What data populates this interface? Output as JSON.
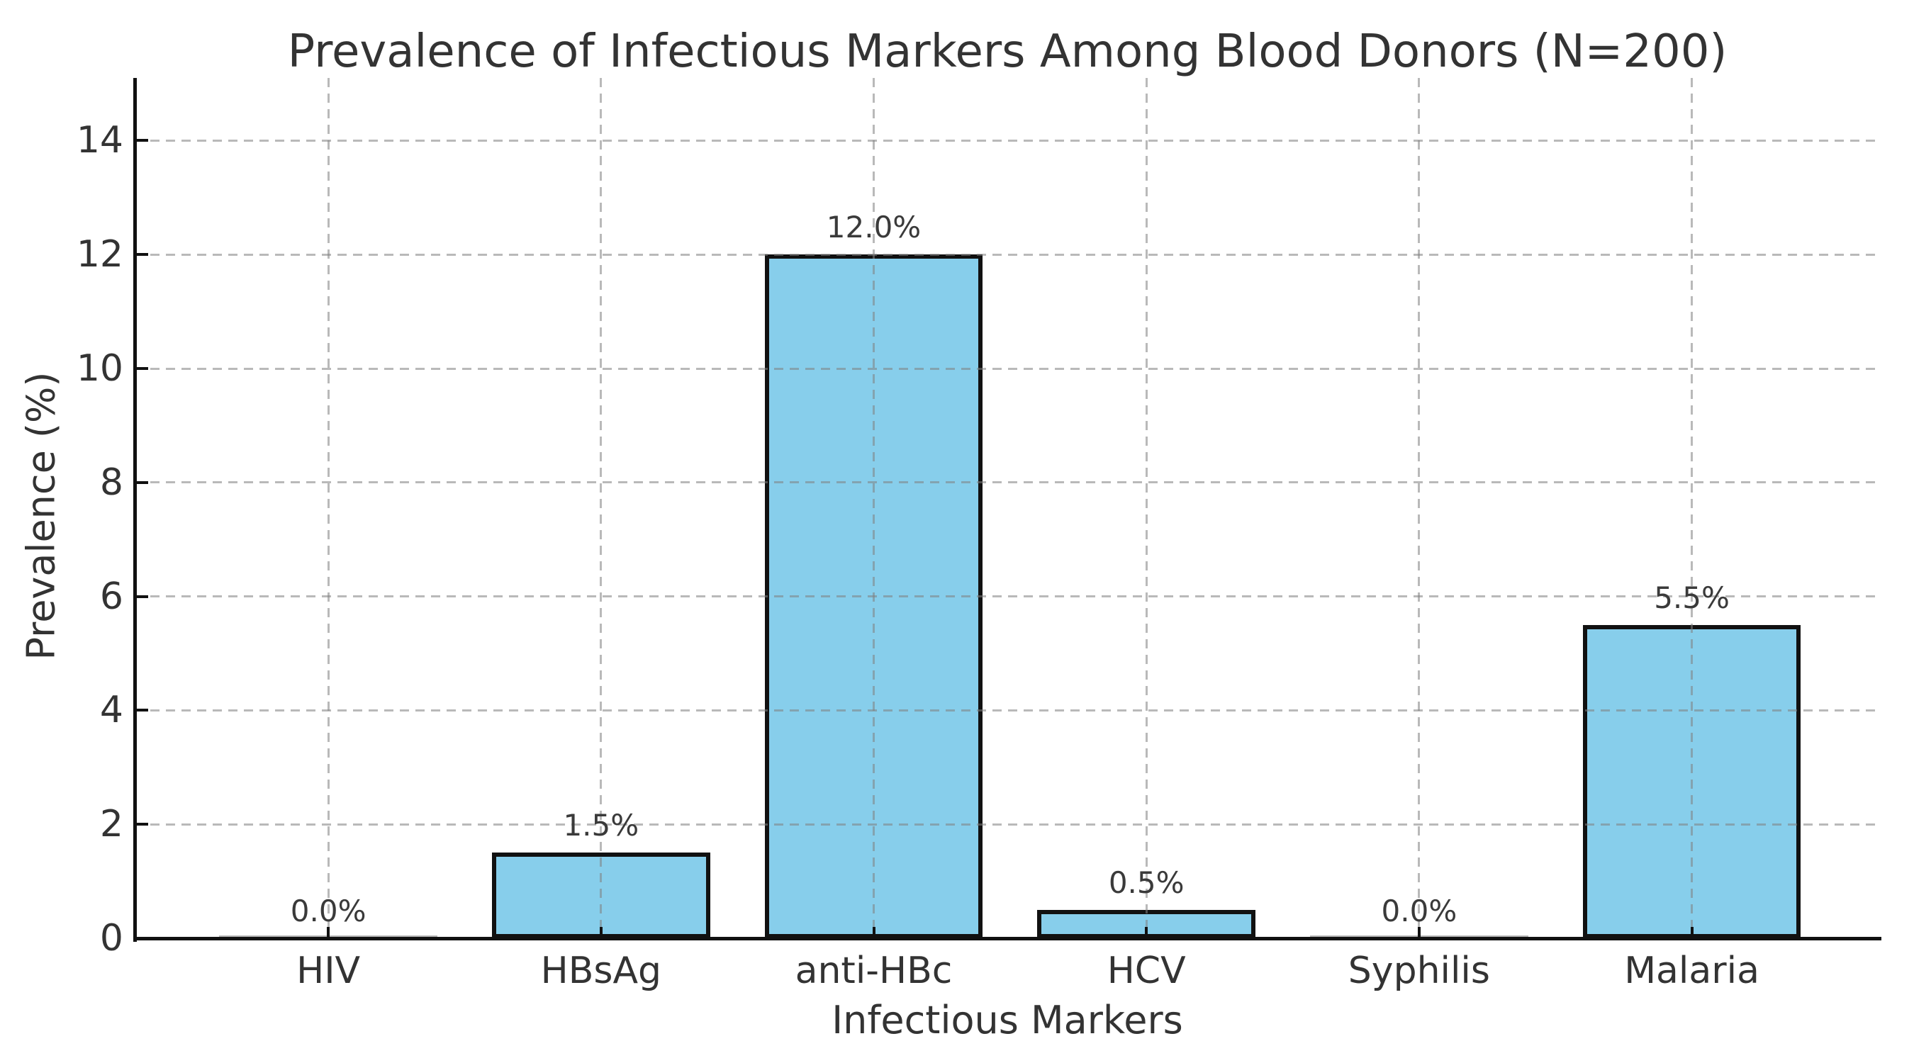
{
  "figure": {
    "background_color": "#ffffff"
  },
  "chart_data": {
    "type": "bar",
    "title": "Prevalence of Infectious Markers Among Blood Donors (N=200)",
    "xlabel": "Infectious Markers",
    "ylabel": "Prevalence (%)",
    "categories": [
      "HIV",
      "HBsAg",
      "anti-HBc",
      "HCV",
      "Syphilis",
      "Malaria"
    ],
    "values": [
      0.0,
      1.5,
      12.0,
      0.5,
      0.0,
      5.5
    ],
    "value_labels": [
      "0.0%",
      "1.5%",
      "12.0%",
      "0.5%",
      "0.0%",
      "5.5%"
    ],
    "yticks": [
      0,
      2,
      4,
      6,
      8,
      10,
      12,
      14
    ],
    "ylim": [
      0,
      15.1
    ],
    "xlim": [
      -0.71,
      5.69
    ],
    "bar_width": 0.8,
    "grid": {
      "style": "dashed",
      "axes": "both",
      "drawn_above_bars": true
    },
    "legend": "none",
    "colors": {
      "bar_fill": "#87CEEB",
      "bar_edge": "#111111",
      "grid": "#b0b0b0",
      "text": "#333333",
      "axis": "#111111",
      "background": "#ffffff"
    }
  }
}
